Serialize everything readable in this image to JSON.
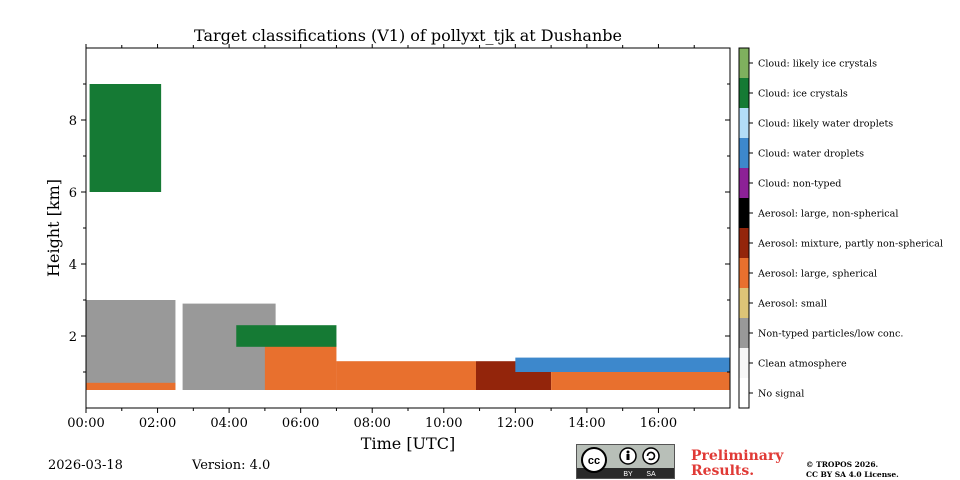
{
  "chart_data": {
    "type": "heatmap",
    "title": "Target classifications (V1) of pollyxt_tjk at Dushanbe",
    "xlabel": "Time [UTC]",
    "ylabel": "Height [km]",
    "xlim": [
      0,
      18
    ],
    "ylim": [
      0,
      10
    ],
    "x_ticks": [
      0,
      2,
      4,
      6,
      8,
      10,
      12,
      14,
      16
    ],
    "x_tick_labels": [
      "00:00",
      "02:00",
      "04:00",
      "06:00",
      "08:00",
      "10:00",
      "12:00",
      "14:00",
      "16:00"
    ],
    "y_ticks": [
      2,
      4,
      6,
      8
    ],
    "y_tick_labels": [
      "2",
      "4",
      "6",
      "8"
    ],
    "colorbar": [
      {
        "label": "No signal",
        "color": "#ffffff"
      },
      {
        "label": "Clean atmosphere",
        "color": "#f7f7f7"
      },
      {
        "label": "Non-typed particles/low conc.",
        "color": "#999999"
      },
      {
        "label": "Aerosol: small",
        "color": "#ddc477"
      },
      {
        "label": "Aerosol: large, spherical",
        "color": "#e8702e"
      },
      {
        "label": "Aerosol: mixture, partly non-spherical",
        "color": "#93250b"
      },
      {
        "label": "Aerosol: large, non-spherical",
        "color": "#000000"
      },
      {
        "label": "Cloud: non-typed",
        "color": "#8c2196"
      },
      {
        "label": "Cloud: water droplets",
        "color": "#3d88cc"
      },
      {
        "label": "Cloud: likely water droplets",
        "color": "#b3ddf8"
      },
      {
        "label": "Cloud: ice crystals",
        "color": "#157a34"
      },
      {
        "label": "Cloud: likely ice crystals",
        "color": "#7fb05e"
      }
    ],
    "regions": [
      {
        "class": "Cloud: ice crystals",
        "t_start": 0.1,
        "t_end": 2.1,
        "h_min": 6.0,
        "h_max": 9.0
      },
      {
        "class": "Non-typed particles/low conc.",
        "t_start": 0.0,
        "t_end": 2.5,
        "h_min": 0.5,
        "h_max": 3.0
      },
      {
        "class": "Aerosol: large, spherical",
        "t_start": 0.0,
        "t_end": 2.5,
        "h_min": 0.5,
        "h_max": 0.7
      },
      {
        "class": "Non-typed particles/low conc.",
        "t_start": 2.7,
        "t_end": 5.3,
        "h_min": 0.5,
        "h_max": 2.9
      },
      {
        "class": "Aerosol: large, spherical",
        "t_start": 5.0,
        "t_end": 7.0,
        "h_min": 0.5,
        "h_max": 1.8
      },
      {
        "class": "Cloud: ice crystals",
        "t_start": 4.2,
        "t_end": 7.0,
        "h_min": 1.7,
        "h_max": 2.3
      },
      {
        "class": "Aerosol: large, spherical",
        "t_start": 7.0,
        "t_end": 10.9,
        "h_min": 0.5,
        "h_max": 1.3
      },
      {
        "class": "Aerosol: mixture, partly non-spherical",
        "t_start": 10.9,
        "t_end": 13.0,
        "h_min": 0.5,
        "h_max": 1.3
      },
      {
        "class": "Aerosol: large, spherical",
        "t_start": 13.0,
        "t_end": 18.0,
        "h_min": 0.5,
        "h_max": 1.0
      },
      {
        "class": "Cloud: water droplets",
        "t_start": 12.0,
        "t_end": 18.0,
        "h_min": 1.0,
        "h_max": 1.4
      }
    ],
    "grid": false,
    "colorbar_position": "right"
  },
  "footer": {
    "date": "2026-03-18",
    "version": "Version: 4.0",
    "preliminary": "Preliminary\nResults.",
    "copyright_line1": "© TROPOS 2026.",
    "copyright_line2": "CC BY SA 4.0 License.",
    "license_badge": {
      "cc": "cc",
      "by": "BY",
      "sa": "SA"
    }
  }
}
